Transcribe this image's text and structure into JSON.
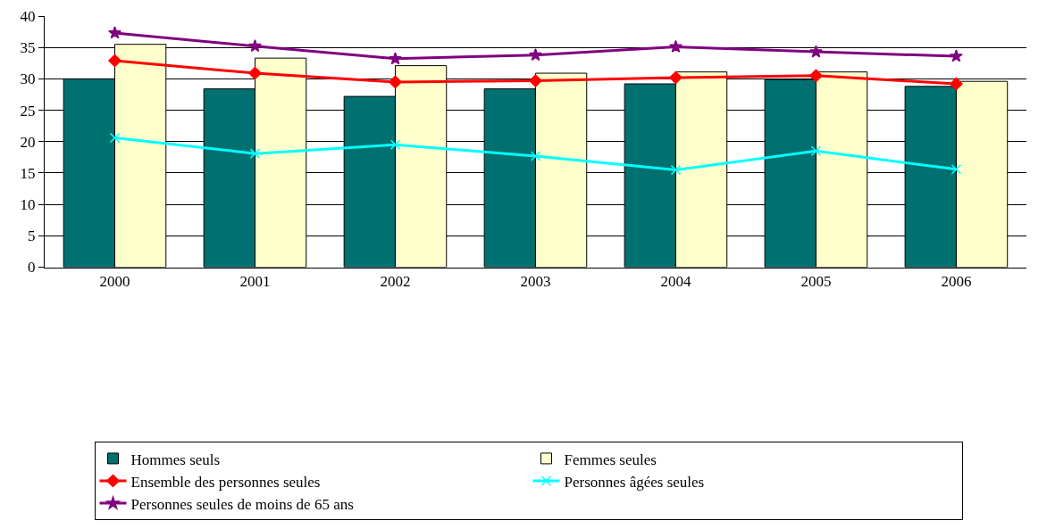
{
  "chart_data": {
    "type": "bar",
    "categories": [
      "2000",
      "2001",
      "2002",
      "2003",
      "2004",
      "2005",
      "2006"
    ],
    "series": [
      {
        "name": "Hommes seuls",
        "color": "#007070",
        "values": [
          30.0,
          28.4,
          27.2,
          28.4,
          29.2,
          29.9,
          28.8
        ]
      },
      {
        "name": "Femmes seules",
        "color": "#ffffcc",
        "values": [
          35.5,
          33.3,
          32.1,
          30.9,
          31.1,
          31.1,
          29.6
        ]
      },
      {
        "name": "Ensemble des personnes seules",
        "type": "line",
        "color": "#ff0000",
        "marker": "diamond",
        "values": [
          32.9,
          30.9,
          29.5,
          29.7,
          30.2,
          30.5,
          29.2
        ]
      },
      {
        "name": "Personnes âgées seules",
        "type": "line",
        "color": "#00ffff",
        "marker": "cross",
        "values": [
          20.6,
          18.1,
          19.5,
          17.7,
          15.5,
          18.5,
          15.6
        ]
      },
      {
        "name": "Personnes seules de moins de 65 ans",
        "type": "line",
        "color": "#800080",
        "marker": "star",
        "values": [
          37.3,
          35.2,
          33.2,
          33.8,
          35.1,
          34.3,
          33.6
        ]
      }
    ],
    "ylim": [
      0,
      40
    ],
    "yticks": [
      0,
      5,
      10,
      15,
      20,
      25,
      30,
      35,
      40
    ],
    "grid": "y",
    "legend": "bottom"
  }
}
